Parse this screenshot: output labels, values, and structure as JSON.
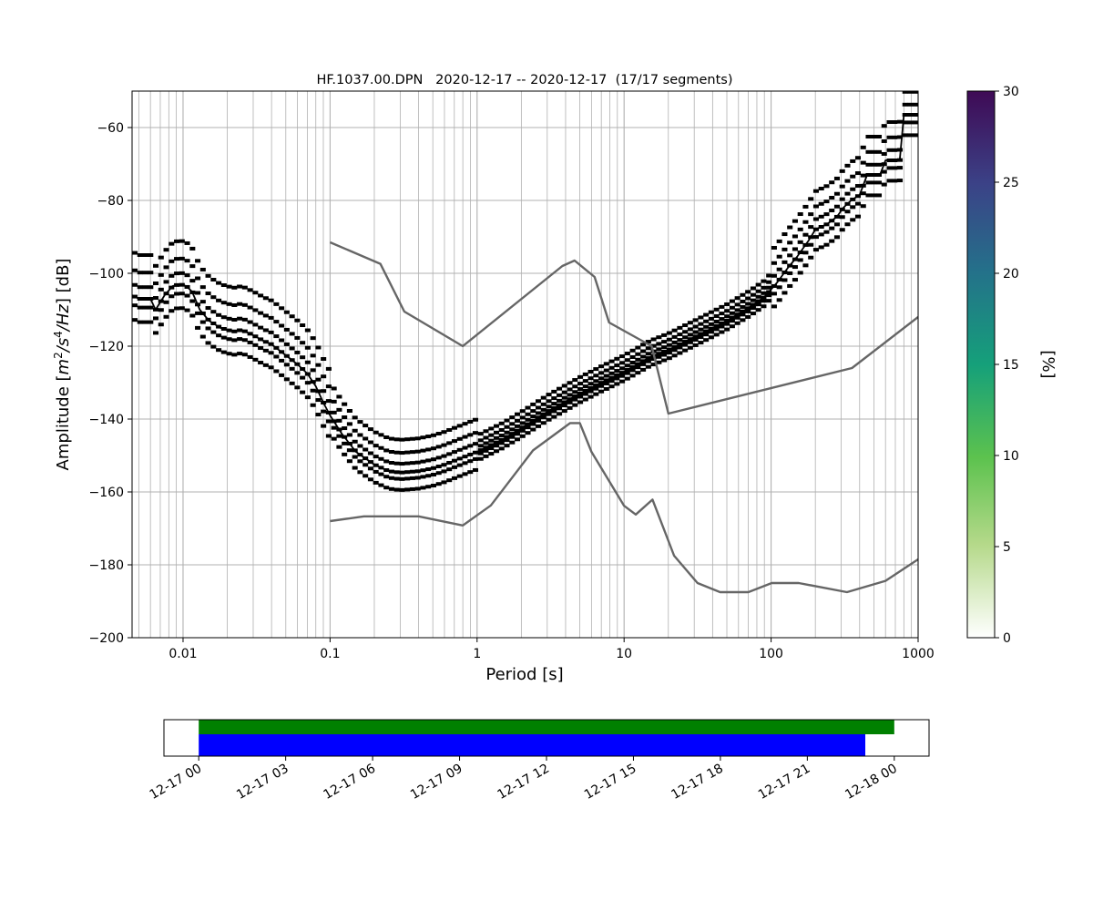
{
  "chart_data": [
    {
      "type": "heatmap",
      "title": "HF.1037.00.DPN   2020-12-17 -- 2020-12-17  (17/17 segments)",
      "xlabel": "Period [s]",
      "ylabel": "Amplitude [m²/s⁴/Hz] [dB]",
      "ylabel_parts": {
        "prefix": "Amplitude [",
        "m": "m",
        "two": "2",
        "s": "/s",
        "four": "4",
        "hz": "/Hz",
        "suffix": "] [dB]"
      },
      "x_scale": "log",
      "xlim": [
        0.0045,
        1000
      ],
      "ylim": [
        -200,
        -50
      ],
      "x_ticks": [
        {
          "value": 0.01,
          "label": "0.01"
        },
        {
          "value": 0.1,
          "label": "0.1"
        },
        {
          "value": 1,
          "label": "1"
        },
        {
          "value": 10,
          "label": "10"
        },
        {
          "value": 100,
          "label": "100"
        },
        {
          "value": 1000,
          "label": "1000"
        }
      ],
      "y_ticks": [
        {
          "value": -60,
          "label": "−60"
        },
        {
          "value": -80,
          "label": "−80"
        },
        {
          "value": -100,
          "label": "−100"
        },
        {
          "value": -120,
          "label": "−120"
        },
        {
          "value": -140,
          "label": "−140"
        },
        {
          "value": -160,
          "label": "−160"
        },
        {
          "value": -180,
          "label": "−180"
        },
        {
          "value": -200,
          "label": "−200"
        }
      ],
      "grid": true,
      "colorbar": {
        "label": "[%]",
        "range": [
          0,
          30
        ],
        "ticks": [
          {
            "value": 0,
            "label": "0"
          },
          {
            "value": 5,
            "label": "5"
          },
          {
            "value": 10,
            "label": "10"
          },
          {
            "value": 15,
            "label": "15"
          },
          {
            "value": 20,
            "label": "20"
          },
          {
            "value": 25,
            "label": "25"
          },
          {
            "value": 30,
            "label": "30"
          }
        ]
      },
      "density_bands": [
        {
          "offset": -1.5,
          "weight": 28
        },
        {
          "offset": 0,
          "weight": 26
        },
        {
          "offset": 2,
          "weight": 13
        },
        {
          "offset": 4.5,
          "weight": 11
        },
        {
          "offset": -4,
          "weight": 10
        },
        {
          "offset": 7.5,
          "weight": 5
        }
      ],
      "series": [
        {
          "kind": "mean",
          "color": "#000000",
          "points": [
            [
              0.0045,
              -106
            ],
            [
              0.005,
              -107
            ],
            [
              0.006,
              -107
            ],
            [
              0.0065,
              -110
            ],
            [
              0.0075,
              -106
            ],
            [
              0.0085,
              -103.5
            ],
            [
              0.0095,
              -103
            ],
            [
              0.0105,
              -103.5
            ],
            [
              0.0115,
              -105
            ],
            [
              0.013,
              -110
            ],
            [
              0.015,
              -113
            ],
            [
              0.018,
              -115
            ],
            [
              0.022,
              -116
            ],
            [
              0.025,
              -115.5
            ],
            [
              0.03,
              -117
            ],
            [
              0.035,
              -118.5
            ],
            [
              0.04,
              -119.5
            ],
            [
              0.05,
              -122.5
            ],
            [
              0.06,
              -125
            ],
            [
              0.07,
              -127.5
            ],
            [
              0.08,
              -131
            ],
            [
              0.09,
              -135.5
            ],
            [
              0.1,
              -139
            ],
            [
              0.12,
              -144
            ],
            [
              0.15,
              -149
            ],
            [
              0.2,
              -152.5
            ],
            [
              0.25,
              -154.3
            ],
            [
              0.3,
              -154.7
            ],
            [
              0.4,
              -154.3
            ],
            [
              0.5,
              -153.5
            ],
            [
              0.6,
              -152.5
            ],
            [
              0.8,
              -150.5
            ],
            [
              1,
              -149
            ],
            [
              1.5,
              -145.5
            ],
            [
              2,
              -142.5
            ],
            [
              3,
              -138
            ],
            [
              5,
              -133
            ],
            [
              7,
              -130
            ],
            [
              10,
              -127
            ],
            [
              15,
              -123
            ],
            [
              20,
              -121
            ],
            [
              30,
              -117.5
            ],
            [
              50,
              -113
            ],
            [
              70,
              -109.5
            ],
            [
              90,
              -106.5
            ],
            [
              110,
              -102.5
            ],
            [
              130,
              -98.5
            ],
            [
              150,
              -95.5
            ],
            [
              180,
              -91
            ],
            [
              200,
              -88
            ],
            [
              240,
              -86.5
            ],
            [
              280,
              -84.5
            ],
            [
              310,
              -82
            ],
            [
              350,
              -80
            ],
            [
              400,
              -78.5
            ],
            [
              450,
              -73
            ],
            [
              550,
              -73
            ],
            [
              600,
              -69
            ],
            [
              750,
              -69
            ],
            [
              800,
              -56.5
            ],
            [
              1000,
              -56.5
            ]
          ]
        },
        {
          "kind": "noise-model-high",
          "color": "#666666",
          "points": [
            [
              0.1,
              -91.5
            ],
            [
              0.22,
              -97.4
            ],
            [
              0.32,
              -110.5
            ],
            [
              0.8,
              -120
            ],
            [
              3.8,
              -98
            ],
            [
              4.6,
              -96.5
            ],
            [
              6.3,
              -101
            ],
            [
              7.9,
              -113.5
            ],
            [
              15.4,
              -120
            ],
            [
              20,
              -138.5
            ],
            [
              354.8,
              -126
            ],
            [
              1000,
              -112
            ]
          ]
        },
        {
          "kind": "noise-model-low",
          "color": "#666666",
          "points": [
            [
              0.1,
              -168
            ],
            [
              0.17,
              -166.7
            ],
            [
              0.4,
              -166.7
            ],
            [
              0.8,
              -169.2
            ],
            [
              1.24,
              -163.7
            ],
            [
              2.4,
              -148.6
            ],
            [
              4.3,
              -141.1
            ],
            [
              5,
              -141.1
            ],
            [
              6,
              -149
            ],
            [
              10,
              -163.8
            ],
            [
              12,
              -166.2
            ],
            [
              15.6,
              -162.1
            ],
            [
              21.9,
              -177.5
            ],
            [
              31.6,
              -185
            ],
            [
              45,
              -187.5
            ],
            [
              70,
              -187.5
            ],
            [
              101,
              -185
            ],
            [
              154,
              -185
            ],
            [
              328,
              -187.5
            ],
            [
              600,
              -184.4
            ],
            [
              1000,
              -178.5
            ]
          ]
        }
      ]
    },
    {
      "type": "timeline",
      "x_ticks": [
        {
          "label": "12-17 00"
        },
        {
          "label": "12-17 03"
        },
        {
          "label": "12-17 06"
        },
        {
          "label": "12-17 09"
        },
        {
          "label": "12-17 12"
        },
        {
          "label": "12-17 15"
        },
        {
          "label": "12-17 18"
        },
        {
          "label": "12-17 21"
        },
        {
          "label": "12-18 00"
        }
      ],
      "xlim_hours": [
        -1.2,
        25.2
      ],
      "bars": [
        {
          "kind": "data-available",
          "color": "#008000",
          "start_hour": 0,
          "end_hour": 24
        },
        {
          "kind": "psd-segments",
          "color": "#0000ff",
          "start_hour": 0,
          "end_hour": 23
        }
      ]
    }
  ]
}
